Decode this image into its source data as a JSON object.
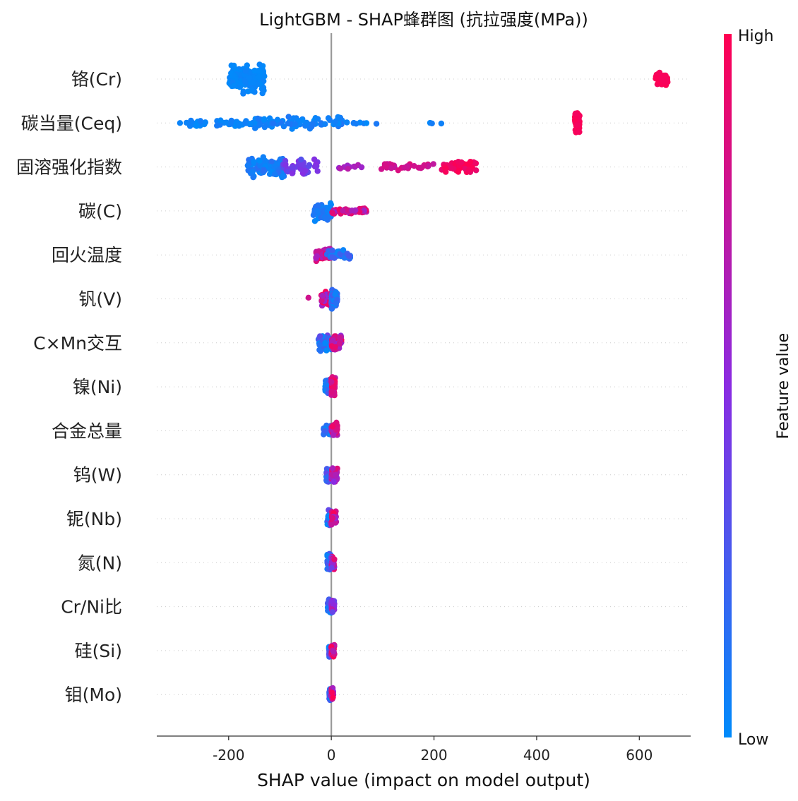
{
  "chart_data": {
    "type": "scatter",
    "subtype": "shap-beeswarm",
    "title": "LightGBM - SHAP蜂群图 (抗拉强度(MPa))",
    "xlabel": "SHAP value (impact on model output)",
    "ylabel": "",
    "xlim": [
      -340,
      700
    ],
    "xticks": [
      -200,
      0,
      200,
      400,
      600
    ],
    "zero_line": true,
    "grid": false,
    "colorbar": {
      "label": "Feature value",
      "high_label": "High",
      "low_label": "Low",
      "high_color": "#ff0052",
      "mid_color": "#8a2be2",
      "low_color": "#008bfb",
      "placement": "right"
    },
    "features": [
      {
        "name": "铬(Cr)",
        "clusters": [
          {
            "min": -200,
            "max": -130,
            "fmin": 0.0,
            "fmax": 0.05,
            "n": 140,
            "spread": 1.0
          },
          {
            "min": 630,
            "max": 655,
            "fmin": 0.96,
            "fmax": 1.0,
            "n": 45,
            "spread": 0.5
          }
        ]
      },
      {
        "name": "碳当量(Ceq)",
        "clusters": [
          {
            "min": -295,
            "max": -150,
            "fmin": 0.0,
            "fmax": 0.08,
            "n": 45,
            "spread": 0.25
          },
          {
            "min": -150,
            "max": 25,
            "fmin": 0.0,
            "fmax": 0.12,
            "n": 85,
            "spread": 0.45
          },
          {
            "min": 25,
            "max": 90,
            "fmin": 0.0,
            "fmax": 0.1,
            "n": 8,
            "spread": 0.1
          },
          {
            "min": 187,
            "max": 218,
            "fmin": 0.0,
            "fmax": 0.1,
            "n": 3,
            "spread": 0.1
          },
          {
            "min": 474,
            "max": 484,
            "fmin": 0.95,
            "fmax": 1.0,
            "n": 40,
            "spread": 0.8
          }
        ]
      },
      {
        "name": "固溶强化指数",
        "clusters": [
          {
            "min": -165,
            "max": -90,
            "fmin": 0.0,
            "fmax": 0.15,
            "n": 110,
            "spread": 0.75
          },
          {
            "min": -95,
            "max": -25,
            "fmin": 0.3,
            "fmax": 0.5,
            "n": 45,
            "spread": 0.55
          },
          {
            "min": 10,
            "max": 60,
            "fmin": 0.55,
            "fmax": 0.7,
            "n": 10,
            "spread": 0.2
          },
          {
            "min": 90,
            "max": 200,
            "fmin": 0.72,
            "fmax": 0.88,
            "n": 30,
            "spread": 0.25
          },
          {
            "min": 215,
            "max": 285,
            "fmin": 0.9,
            "fmax": 1.0,
            "n": 45,
            "spread": 0.4
          }
        ]
      },
      {
        "name": "碳(C)",
        "clusters": [
          {
            "min": -35,
            "max": 0,
            "fmin": 0.0,
            "fmax": 0.15,
            "n": 60,
            "spread": 0.7
          },
          {
            "min": 0,
            "max": 70,
            "fmin": 0.55,
            "fmax": 1.0,
            "n": 55,
            "spread": 0.2
          }
        ]
      },
      {
        "name": "回火温度",
        "clusters": [
          {
            "min": -30,
            "max": 0,
            "fmin": 0.6,
            "fmax": 1.0,
            "n": 45,
            "spread": 0.5
          },
          {
            "min": -10,
            "max": 38,
            "fmin": 0.0,
            "fmax": 0.3,
            "n": 45,
            "spread": 0.35
          }
        ]
      },
      {
        "name": "钒(V)",
        "clusters": [
          {
            "min": -45,
            "max": -40,
            "fmin": 0.7,
            "fmax": 0.8,
            "n": 1,
            "spread": 0.1
          },
          {
            "min": -20,
            "max": 0,
            "fmin": 0.5,
            "fmax": 1.0,
            "n": 30,
            "spread": 0.6
          },
          {
            "min": 0,
            "max": 12,
            "fmin": 0.0,
            "fmax": 0.3,
            "n": 60,
            "spread": 0.8
          }
        ]
      },
      {
        "name": "C×Mn交互",
        "clusters": [
          {
            "min": -25,
            "max": 0,
            "fmin": 0.0,
            "fmax": 0.4,
            "n": 50,
            "spread": 0.6
          },
          {
            "min": 0,
            "max": 20,
            "fmin": 0.5,
            "fmax": 1.0,
            "n": 50,
            "spread": 0.6
          }
        ]
      },
      {
        "name": "镍(Ni)",
        "clusters": [
          {
            "min": -12,
            "max": 0,
            "fmin": 0.0,
            "fmax": 0.3,
            "n": 45,
            "spread": 0.5
          },
          {
            "min": 0,
            "max": 8,
            "fmin": 0.7,
            "fmax": 1.0,
            "n": 45,
            "spread": 0.75
          }
        ]
      },
      {
        "name": "合金总量",
        "clusters": [
          {
            "min": -15,
            "max": 0,
            "fmin": 0.0,
            "fmax": 0.3,
            "n": 40,
            "spread": 0.4
          },
          {
            "min": 0,
            "max": 12,
            "fmin": 0.6,
            "fmax": 1.0,
            "n": 40,
            "spread": 0.6
          }
        ]
      },
      {
        "name": "钨(W)",
        "clusters": [
          {
            "min": -10,
            "max": 0,
            "fmin": 0.0,
            "fmax": 0.4,
            "n": 40,
            "spread": 0.6
          },
          {
            "min": 0,
            "max": 12,
            "fmin": 0.5,
            "fmax": 0.9,
            "n": 40,
            "spread": 0.5
          }
        ]
      },
      {
        "name": "铌(Nb)",
        "clusters": [
          {
            "min": -8,
            "max": 0,
            "fmin": 0.0,
            "fmax": 0.4,
            "n": 40,
            "spread": 0.6
          },
          {
            "min": 0,
            "max": 10,
            "fmin": 0.5,
            "fmax": 1.0,
            "n": 35,
            "spread": 0.5
          }
        ]
      },
      {
        "name": "氮(N)",
        "clusters": [
          {
            "min": -8,
            "max": 0,
            "fmin": 0.0,
            "fmax": 0.3,
            "n": 40,
            "spread": 0.6
          },
          {
            "min": 0,
            "max": 6,
            "fmin": 0.4,
            "fmax": 1.0,
            "n": 35,
            "spread": 0.5
          }
        ]
      },
      {
        "name": "Cr/Ni比",
        "clusters": [
          {
            "min": -7,
            "max": 0,
            "fmin": 0.0,
            "fmax": 0.35,
            "n": 40,
            "spread": 0.5
          },
          {
            "min": 0,
            "max": 6,
            "fmin": 0.3,
            "fmax": 0.7,
            "n": 40,
            "spread": 0.5
          }
        ]
      },
      {
        "name": "硅(Si)",
        "clusters": [
          {
            "min": -5,
            "max": 0,
            "fmin": 0.0,
            "fmax": 0.4,
            "n": 40,
            "spread": 0.5
          },
          {
            "min": 0,
            "max": 6,
            "fmin": 0.6,
            "fmax": 1.0,
            "n": 40,
            "spread": 0.5
          }
        ]
      },
      {
        "name": "钼(Mo)",
        "clusters": [
          {
            "min": -4,
            "max": 0,
            "fmin": 0.0,
            "fmax": 0.3,
            "n": 40,
            "spread": 0.5
          },
          {
            "min": 0,
            "max": 4,
            "fmin": 0.5,
            "fmax": 1.0,
            "n": 35,
            "spread": 0.5
          }
        ]
      }
    ]
  }
}
